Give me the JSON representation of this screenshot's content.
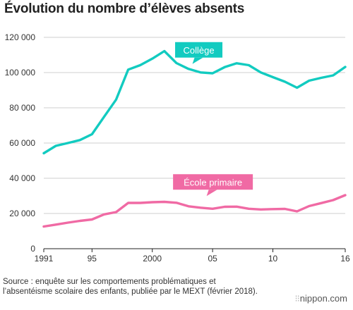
{
  "title": "Évolution du nombre d’élèves absents",
  "source": "Source : enquête sur les comportements problématiques et l’absentéisme scolaire des enfants, publiée par le MEXT (février 2018).",
  "brand": {
    "dots": "⁝⁝",
    "name": "nippon.com"
  },
  "colors": {
    "college": "#12cbc0",
    "primaire": "#f06aa4",
    "grid": "#cfcfcf",
    "axis": "#222222"
  },
  "chart_data": {
    "type": "line",
    "title": "Évolution du nombre d’élèves absents",
    "xlabel": "",
    "ylabel": "",
    "x": [
      1991,
      1992,
      1993,
      1994,
      1995,
      1996,
      1997,
      1998,
      1999,
      2000,
      2001,
      2002,
      2003,
      2004,
      2005,
      2006,
      2007,
      2008,
      2009,
      2010,
      2011,
      2012,
      2013,
      2014,
      2015,
      2016
    ],
    "xlim": [
      1991,
      2016
    ],
    "ylim": [
      0,
      120000
    ],
    "grid": true,
    "x_ticks": [
      1991,
      1995,
      2000,
      2005,
      2010,
      2016
    ],
    "x_tick_labels": [
      "1991",
      "95",
      "2000",
      "05",
      "10",
      "16"
    ],
    "y_ticks": [
      0,
      20000,
      40000,
      60000,
      80000,
      100000,
      120000
    ],
    "y_tick_labels": [
      "0",
      "20 000",
      "40 000",
      "60 000",
      "80 000",
      "100 000",
      "120 000"
    ],
    "series": [
      {
        "name": "Collège",
        "color": "#12cbc0",
        "values": [
          54200,
          58400,
          60000,
          61700,
          65000,
          74900,
          84700,
          101700,
          104200,
          107900,
          112200,
          105400,
          102100,
          100100,
          99600,
          103100,
          105300,
          104200,
          100100,
          97400,
          94800,
          91400,
          95400,
          97000,
          98400,
          103200
        ]
      },
      {
        "name": "École primaire",
        "color": "#f06aa4",
        "values": [
          12600,
          13700,
          14800,
          15800,
          16600,
          19500,
          20800,
          26000,
          26000,
          26400,
          26600,
          26100,
          24100,
          23300,
          22700,
          23800,
          23900,
          22700,
          22300,
          22500,
          22600,
          21200,
          24200,
          25900,
          27600,
          30400
        ]
      }
    ]
  }
}
